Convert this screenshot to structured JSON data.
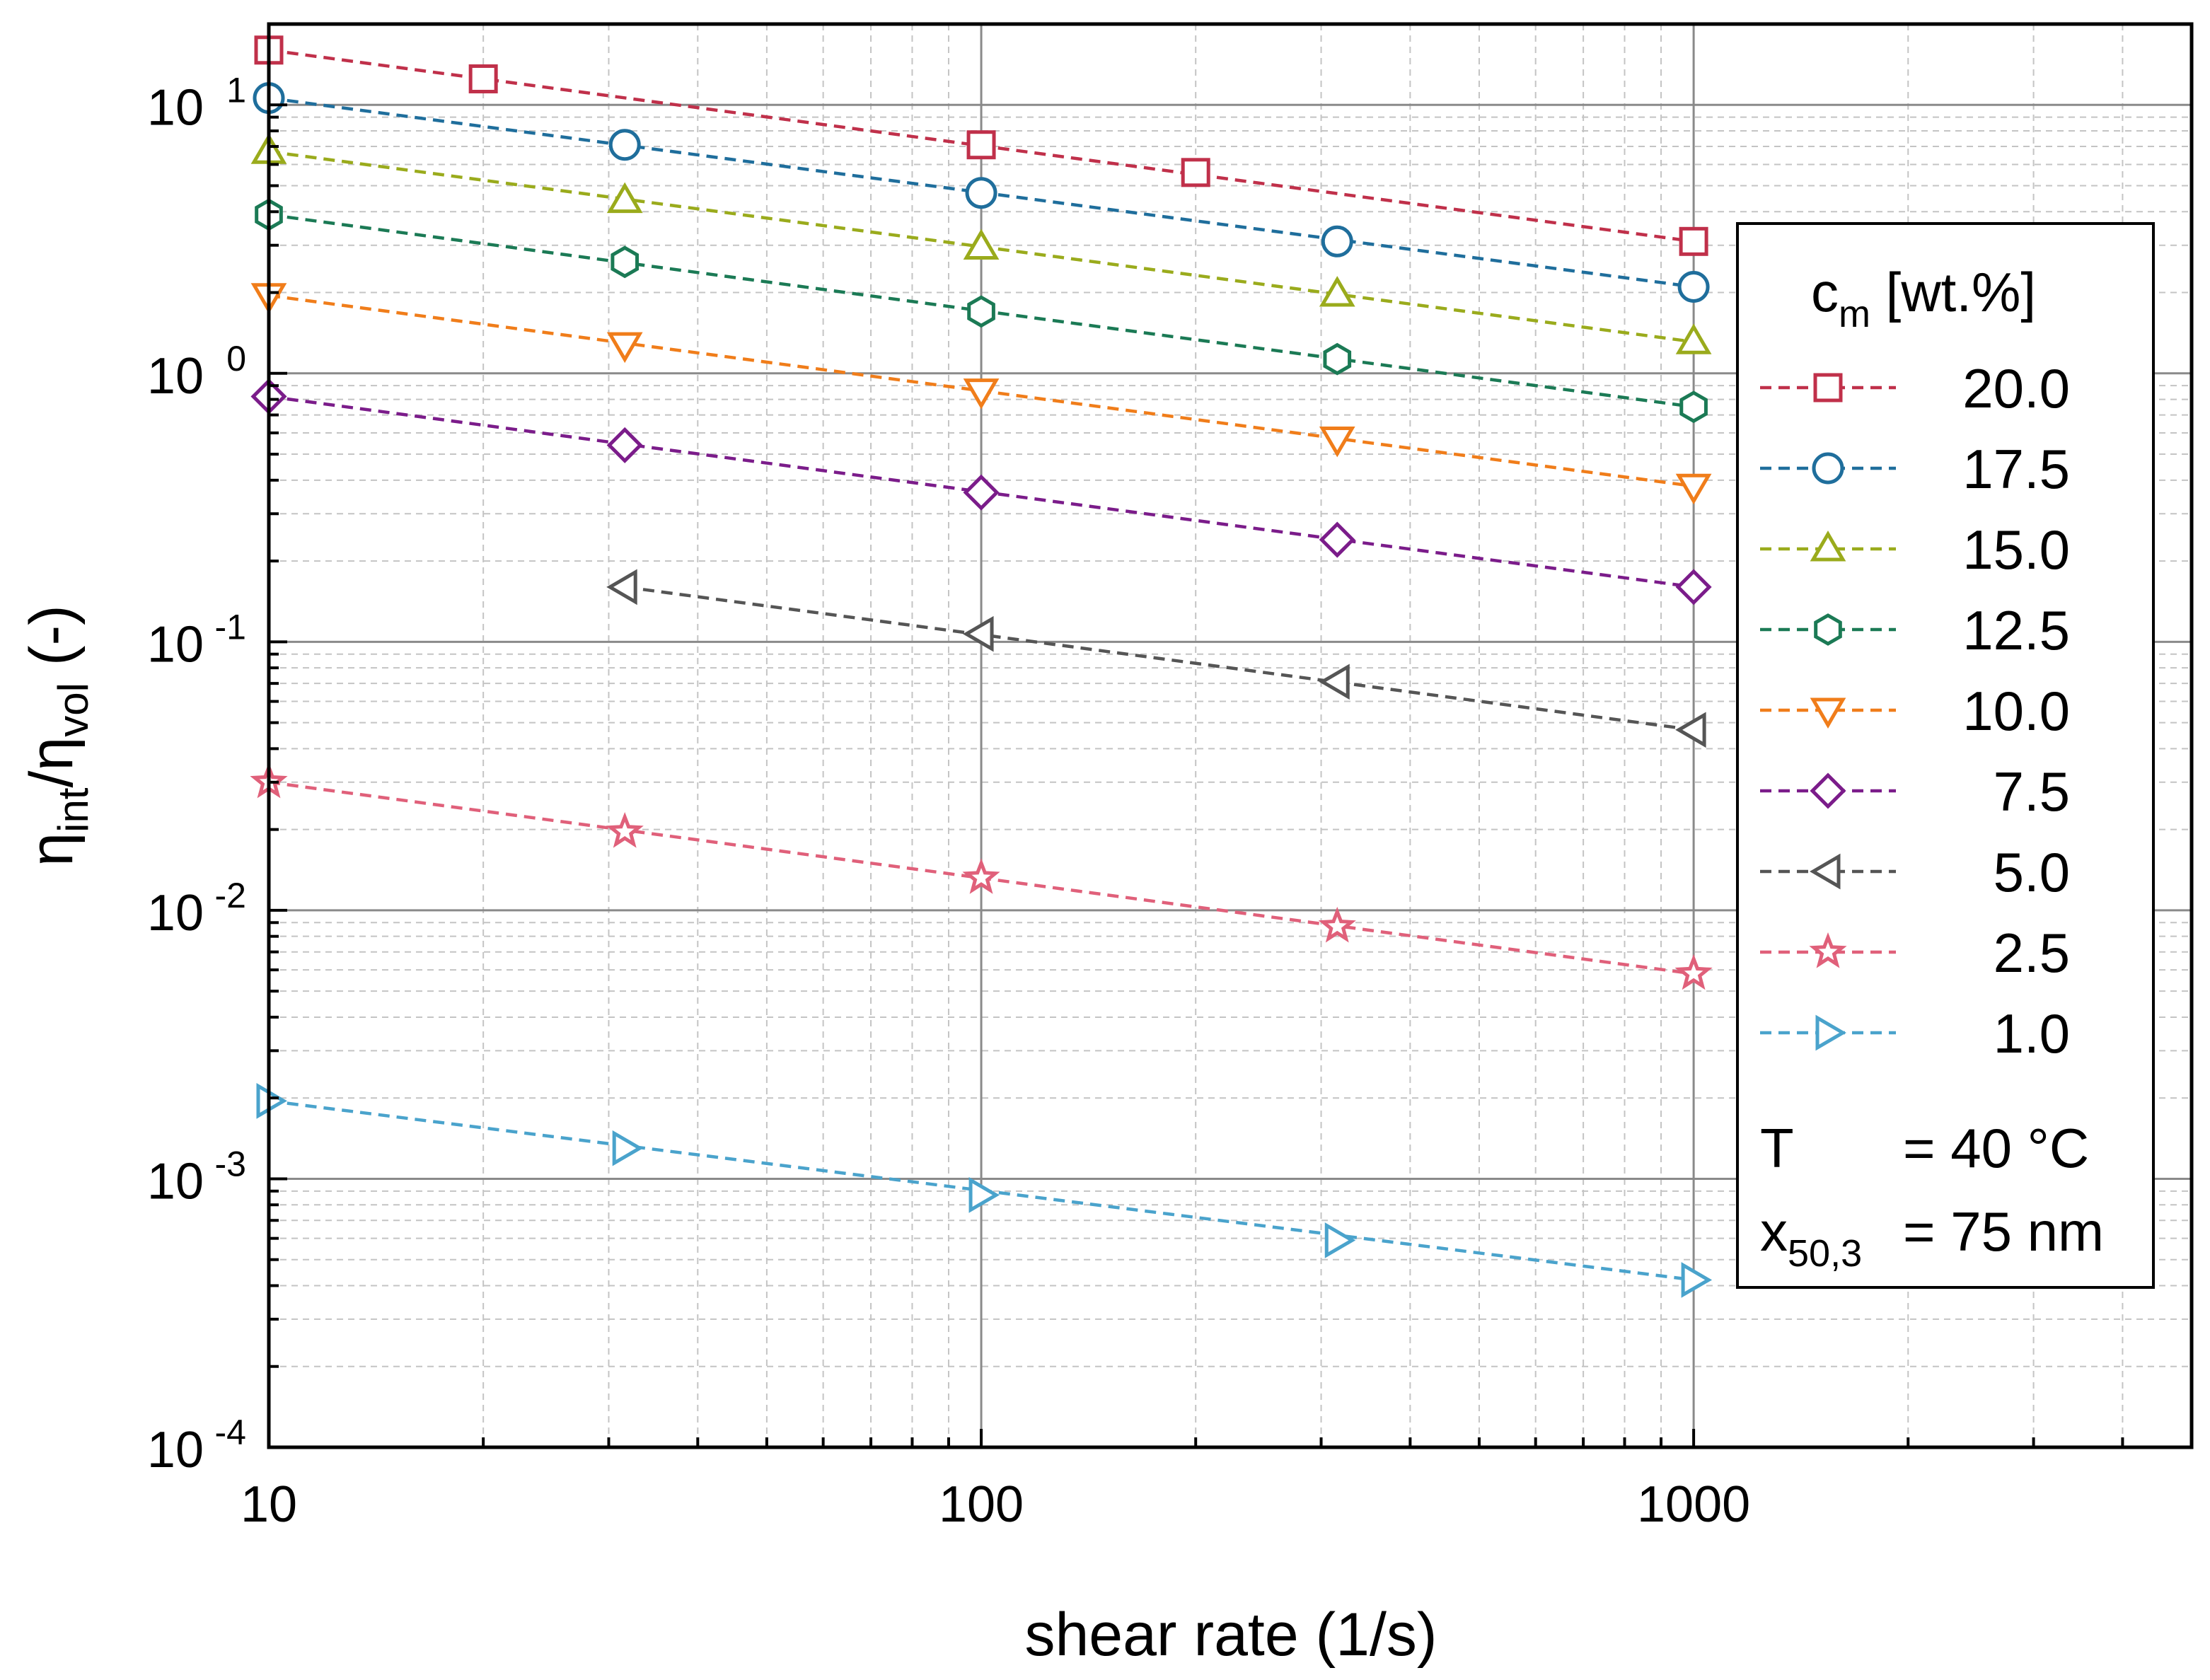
{
  "chart_data": {
    "type": "line",
    "xscale": "log",
    "yscale": "log",
    "xlabel": "shear rate (1/s)",
    "ylabel": {
      "base": "η",
      "sub1": "int",
      "sep": "/",
      "base2": "η",
      "sub2": "vol",
      "suffix": " (-)"
    },
    "xlim": [
      10,
      5000
    ],
    "ylim": [
      0.0001,
      20
    ],
    "x_ticks": [
      {
        "value": 10,
        "label": "10"
      },
      {
        "value": 100,
        "label": "100"
      },
      {
        "value": 1000,
        "label": "1000"
      }
    ],
    "y_ticks": [
      {
        "value": 0.0001,
        "mantissa": "10",
        "exponent": "-4"
      },
      {
        "value": 0.001,
        "mantissa": "10",
        "exponent": "-3"
      },
      {
        "value": 0.01,
        "mantissa": "10",
        "exponent": "-2"
      },
      {
        "value": 0.1,
        "mantissa": "10",
        "exponent": "-1"
      },
      {
        "value": 1,
        "mantissa": "10",
        "exponent": "0"
      },
      {
        "value": 10,
        "mantissa": "10",
        "exponent": "1"
      }
    ],
    "grid": true,
    "legend": {
      "position": "right",
      "title": {
        "base": "c",
        "sub": "m",
        "rest": " [wt.%]"
      },
      "notes": [
        {
          "label": "T",
          "sub": "",
          "value": "= 40 °C"
        },
        {
          "label": "x",
          "sub": "50,3",
          "value": "= 75 nm"
        }
      ]
    },
    "series": [
      {
        "name": "20.0",
        "color": "#c0304a",
        "marker": "square",
        "x": [
          10,
          20,
          100,
          200,
          1000
        ],
        "y": [
          16,
          12.5,
          7.1,
          5.6,
          3.1
        ],
        "fit": [
          [
            10,
            16
          ],
          [
            1000,
            3.1
          ]
        ]
      },
      {
        "name": "17.5",
        "color": "#1f6e9c",
        "marker": "circle",
        "x": [
          10,
          31.6,
          100,
          316,
          1000
        ],
        "y": [
          10.6,
          7.1,
          4.7,
          3.1,
          2.1
        ],
        "fit": [
          [
            10,
            10.6
          ],
          [
            1000,
            2.1
          ]
        ]
      },
      {
        "name": "15.0",
        "color": "#9aab1c",
        "marker": "triangle-up",
        "x": [
          10,
          31.6,
          100,
          316,
          1000
        ],
        "y": [
          6.7,
          4.4,
          2.95,
          1.97,
          1.31
        ],
        "fit": [
          [
            10,
            6.7
          ],
          [
            1000,
            1.31
          ]
        ]
      },
      {
        "name": "12.5",
        "color": "#1b7a55",
        "marker": "hexagon",
        "x": [
          10,
          31.6,
          100,
          316,
          1000
        ],
        "y": [
          3.9,
          2.6,
          1.7,
          1.13,
          0.75
        ],
        "fit": [
          [
            10,
            3.9
          ],
          [
            1000,
            0.75
          ]
        ]
      },
      {
        "name": "10.0",
        "color": "#f07d1a",
        "marker": "triangle-down",
        "x": [
          10,
          31.6,
          100,
          316,
          1000
        ],
        "y": [
          1.95,
          1.28,
          0.86,
          0.57,
          0.38
        ],
        "fit": [
          [
            10,
            1.95
          ],
          [
            1000,
            0.38
          ]
        ]
      },
      {
        "name": "7.5",
        "color": "#7b1c8a",
        "marker": "diamond",
        "x": [
          10,
          31.6,
          100,
          316,
          1000
        ],
        "y": [
          0.82,
          0.54,
          0.36,
          0.24,
          0.16
        ],
        "fit": [
          [
            10,
            0.82
          ],
          [
            1000,
            0.16
          ]
        ]
      },
      {
        "name": "5.0",
        "color": "#555555",
        "marker": "triangle-left",
        "x": [
          31.6,
          100,
          316,
          1000
        ],
        "y": [
          0.16,
          0.107,
          0.071,
          0.047
        ],
        "fit": [
          [
            31.6,
            0.16
          ],
          [
            1000,
            0.047
          ]
        ]
      },
      {
        "name": "2.5",
        "color": "#e0607a",
        "marker": "star",
        "x": [
          10,
          31.6,
          100,
          316,
          1000
        ],
        "y": [
          0.03,
          0.0196,
          0.0132,
          0.0087,
          0.0058
        ],
        "fit": [
          [
            10,
            0.03
          ],
          [
            1000,
            0.0058
          ]
        ]
      },
      {
        "name": "1.0",
        "color": "#4aa3cc",
        "marker": "triangle-right",
        "x": [
          10,
          31.6,
          100,
          316,
          1000
        ],
        "y": [
          0.00195,
          0.0013,
          0.00087,
          0.00059,
          0.00042
        ],
        "fit": [
          [
            10,
            0.00195
          ],
          [
            1000,
            0.00042
          ]
        ]
      }
    ]
  }
}
